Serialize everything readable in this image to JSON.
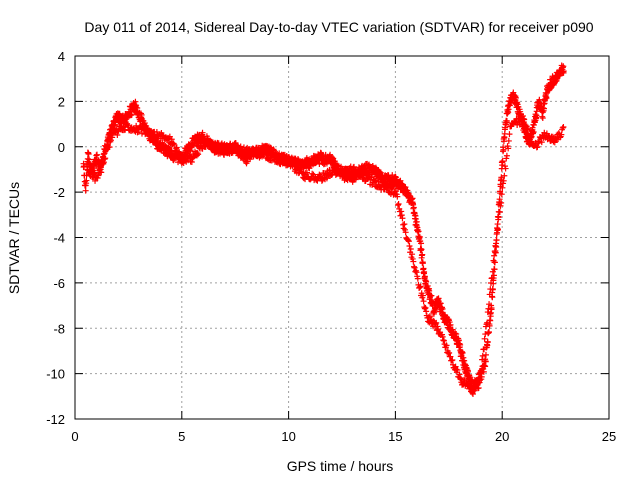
{
  "chart_data": {
    "type": "scatter",
    "title": "Day 011 of 2014, Sidereal Day-to-day VTEC variation (SDTVAR) for receiver p090",
    "xlabel": "GPS time / hours",
    "ylabel": "SDTVAR / TECUs",
    "xlim": [
      0,
      25
    ],
    "ylim": [
      -12,
      4
    ],
    "xticks": [
      0,
      5,
      10,
      15,
      20,
      25
    ],
    "yticks": [
      -12,
      -10,
      -8,
      -6,
      -4,
      -2,
      0,
      2,
      4
    ],
    "grid": true,
    "marker": "+",
    "series_color": "#ff0000",
    "series": [
      {
        "name": "SDTVAR",
        "anchors": [
          [
            0.4,
            -0.8
          ],
          [
            0.5,
            -1.8
          ],
          [
            0.6,
            -0.3
          ],
          [
            0.8,
            -1.2
          ],
          [
            1.0,
            -0.5
          ],
          [
            1.2,
            -1.0
          ],
          [
            1.4,
            -0.2
          ],
          [
            1.6,
            0.5
          ],
          [
            1.8,
            1.0
          ],
          [
            2.0,
            1.3
          ],
          [
            2.3,
            1.1
          ],
          [
            2.6,
            1.6
          ],
          [
            2.8,
            1.8
          ],
          [
            3.0,
            1.4
          ],
          [
            3.3,
            0.8
          ],
          [
            3.6,
            0.4
          ],
          [
            4.0,
            0.0
          ],
          [
            4.5,
            -0.3
          ],
          [
            5.0,
            -0.5
          ],
          [
            5.5,
            0.2
          ],
          [
            6.0,
            0.4
          ],
          [
            6.5,
            0.0
          ],
          [
            7.0,
            -0.2
          ],
          [
            7.5,
            0.0
          ],
          [
            8.0,
            -0.5
          ],
          [
            8.5,
            -0.2
          ],
          [
            9.0,
            -0.1
          ],
          [
            9.5,
            -0.5
          ],
          [
            10.0,
            -0.6
          ],
          [
            10.5,
            -0.8
          ],
          [
            11.0,
            -0.7
          ],
          [
            11.5,
            -0.5
          ],
          [
            12.0,
            -0.6
          ],
          [
            12.5,
            -1.2
          ],
          [
            13.0,
            -1.3
          ],
          [
            13.5,
            -1.0
          ],
          [
            14.0,
            -1.0
          ],
          [
            14.5,
            -1.5
          ],
          [
            15.0,
            -1.5
          ],
          [
            15.5,
            -2.0
          ],
          [
            15.8,
            -2.5
          ],
          [
            16.0,
            -3.5
          ],
          [
            16.2,
            -4.5
          ],
          [
            16.4,
            -6.0
          ],
          [
            16.6,
            -6.5
          ],
          [
            16.8,
            -7.2
          ],
          [
            17.0,
            -6.8
          ],
          [
            17.3,
            -7.5
          ],
          [
            17.6,
            -8.0
          ],
          [
            18.0,
            -8.8
          ],
          [
            18.3,
            -9.8
          ],
          [
            18.6,
            -10.6
          ],
          [
            18.9,
            -10.4
          ],
          [
            19.2,
            -9.5
          ],
          [
            19.5,
            -7.0
          ],
          [
            19.7,
            -4.5
          ],
          [
            19.9,
            -2.0
          ],
          [
            20.1,
            0.5
          ],
          [
            20.3,
            1.8
          ],
          [
            20.5,
            2.3
          ],
          [
            20.7,
            1.8
          ],
          [
            20.9,
            1.3
          ],
          [
            21.1,
            0.5
          ],
          [
            21.3,
            0.2
          ],
          [
            21.5,
            1.0
          ],
          [
            21.7,
            2.0
          ],
          [
            21.9,
            1.5
          ],
          [
            22.1,
            2.5
          ],
          [
            22.3,
            2.8
          ],
          [
            22.5,
            3.0
          ],
          [
            22.7,
            3.3
          ],
          [
            22.9,
            3.4
          ]
        ],
        "secondary_anchors": [
          [
            0.6,
            -1.0
          ],
          [
            1.0,
            -1.4
          ],
          [
            1.8,
            0.6
          ],
          [
            2.5,
            0.9
          ],
          [
            3.5,
            0.6
          ],
          [
            4.5,
            0.3
          ],
          [
            5.0,
            -0.6
          ],
          [
            5.5,
            -0.5
          ],
          [
            6.0,
            0.1
          ],
          [
            7.0,
            0.0
          ],
          [
            8.0,
            -0.2
          ],
          [
            9.0,
            -0.4
          ],
          [
            10.0,
            -0.7
          ],
          [
            10.8,
            -1.3
          ],
          [
            11.5,
            -1.4
          ],
          [
            12.0,
            -1.1
          ],
          [
            13.0,
            -1.0
          ],
          [
            14.0,
            -1.6
          ],
          [
            15.0,
            -2.0
          ],
          [
            16.5,
            -7.5
          ],
          [
            17.0,
            -8.0
          ],
          [
            18.0,
            -10.2
          ],
          [
            18.6,
            -10.8
          ],
          [
            19.0,
            -10.0
          ],
          [
            19.8,
            -3.5
          ],
          [
            20.4,
            1.0
          ],
          [
            21.0,
            1.2
          ],
          [
            21.5,
            0.0
          ],
          [
            22.0,
            0.5
          ],
          [
            22.4,
            0.3
          ],
          [
            22.8,
            0.6
          ],
          [
            22.9,
            1.0
          ]
        ]
      }
    ]
  }
}
